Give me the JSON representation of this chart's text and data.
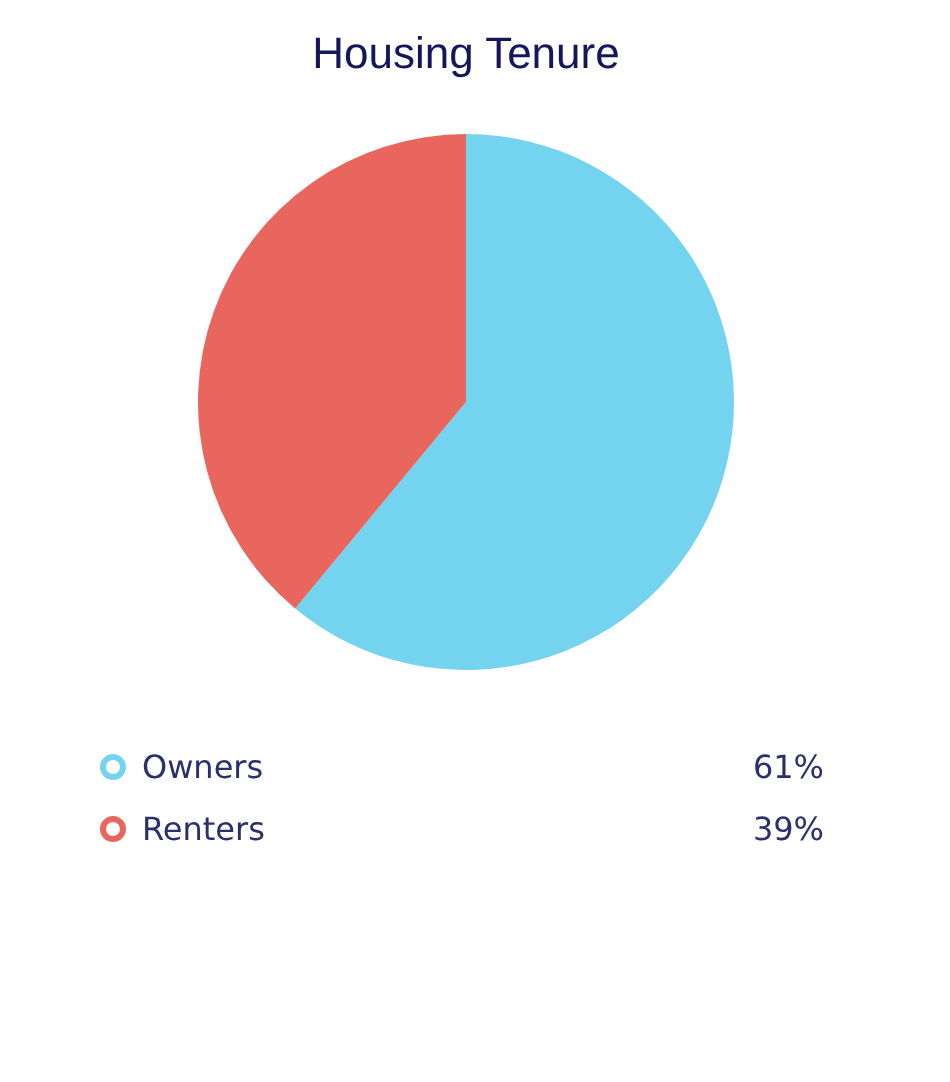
{
  "chart_data": {
    "type": "pie",
    "title": "Housing Tenure",
    "categories": [
      "Owners",
      "Renters"
    ],
    "values": [
      61,
      39
    ],
    "colors": [
      "#74d3ef",
      "#e9665e"
    ],
    "value_labels": [
      "61%",
      "39%"
    ],
    "legend": "bottom"
  }
}
